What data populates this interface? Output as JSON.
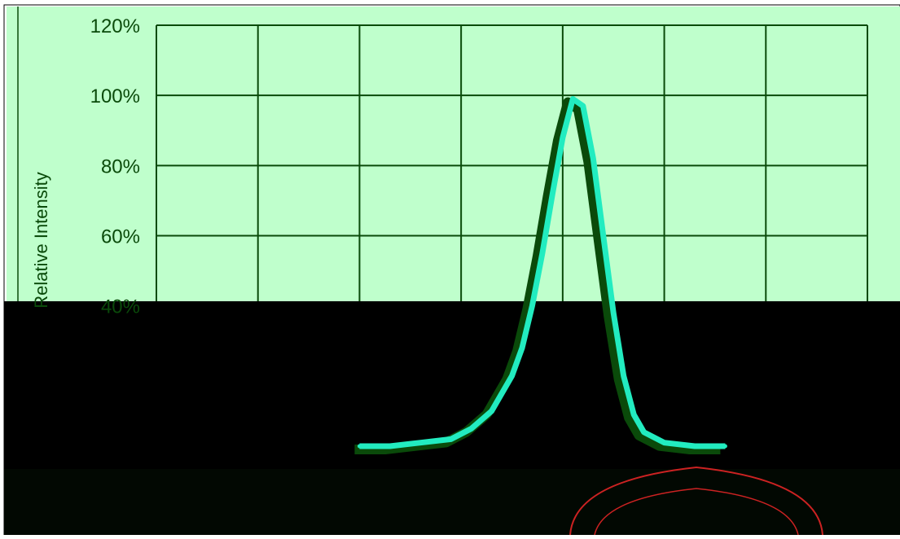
{
  "colors": {
    "plot_background": "#bfffcc",
    "grid": "#0a4a0a",
    "tick_label": "#0a4a0a",
    "curve": "#22ecc0",
    "curve_shadow": "#0a4a0a",
    "dark_overlay": "#000000",
    "seal": "#cc2222"
  },
  "chart_data": {
    "type": "line",
    "title": "",
    "xlabel": "",
    "ylabel": "Relative Intensity",
    "ylim": [
      0,
      1.2
    ],
    "y_ticks": [
      "120%",
      "100%",
      "80%",
      "60%",
      "40%"
    ],
    "y_tick_values": [
      1.2,
      1.0,
      0.8,
      0.6,
      0.4
    ],
    "xlim": [
      0,
      7
    ],
    "x_grid_count": 7,
    "grid": true,
    "legend": "none",
    "series": [
      {
        "name": "",
        "x": [
          2.0,
          2.3,
          2.6,
          2.9,
          3.1,
          3.3,
          3.5,
          3.6,
          3.7,
          3.8,
          3.9,
          4.0,
          4.1,
          4.2,
          4.3,
          4.4,
          4.5,
          4.6,
          4.7,
          4.8,
          5.0,
          5.3,
          5.6
        ],
        "y": [
          0.0,
          0.0,
          0.01,
          0.02,
          0.05,
          0.1,
          0.2,
          0.28,
          0.4,
          0.55,
          0.72,
          0.88,
          0.99,
          0.97,
          0.82,
          0.6,
          0.38,
          0.2,
          0.09,
          0.04,
          0.01,
          0.0,
          0.0
        ]
      }
    ]
  }
}
